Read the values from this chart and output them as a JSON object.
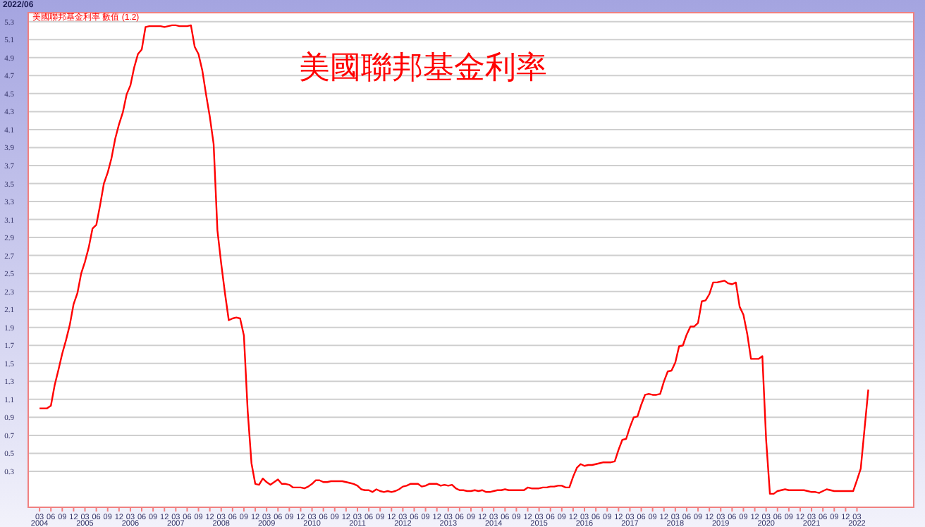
{
  "chart_data": {
    "type": "line",
    "title": "美國聯邦基金利率",
    "annotations": [
      "2022/06"
    ],
    "x": [
      "2004-03",
      "2004-04",
      "2004-05",
      "2004-06",
      "2004-07",
      "2004-08",
      "2004-09",
      "2004-10",
      "2004-11",
      "2004-12",
      "2005-01",
      "2005-02",
      "2005-03",
      "2005-04",
      "2005-05",
      "2005-06",
      "2005-07",
      "2005-08",
      "2005-09",
      "2005-10",
      "2005-11",
      "2005-12",
      "2006-01",
      "2006-02",
      "2006-03",
      "2006-04",
      "2006-05",
      "2006-06",
      "2006-07",
      "2006-08",
      "2006-09",
      "2006-10",
      "2006-11",
      "2006-12",
      "2007-01",
      "2007-02",
      "2007-03",
      "2007-04",
      "2007-05",
      "2007-06",
      "2007-07",
      "2007-08",
      "2007-09",
      "2007-10",
      "2007-11",
      "2007-12",
      "2008-01",
      "2008-02",
      "2008-03",
      "2008-04",
      "2008-05",
      "2008-06",
      "2008-07",
      "2008-08",
      "2008-09",
      "2008-10",
      "2008-11",
      "2008-12",
      "2009-01",
      "2009-02",
      "2009-03",
      "2009-04",
      "2009-05",
      "2009-06",
      "2009-07",
      "2009-08",
      "2009-09",
      "2009-10",
      "2009-11",
      "2009-12",
      "2010-01",
      "2010-02",
      "2010-03",
      "2010-04",
      "2010-05",
      "2010-06",
      "2010-07",
      "2010-08",
      "2010-09",
      "2010-10",
      "2010-11",
      "2010-12",
      "2011-01",
      "2011-02",
      "2011-03",
      "2011-04",
      "2011-05",
      "2011-06",
      "2011-07",
      "2011-08",
      "2011-09",
      "2011-10",
      "2011-11",
      "2011-12",
      "2012-01",
      "2012-02",
      "2012-03",
      "2012-04",
      "2012-05",
      "2012-06",
      "2012-07",
      "2012-08",
      "2012-09",
      "2012-10",
      "2012-11",
      "2012-12",
      "2013-01",
      "2013-02",
      "2013-03",
      "2013-04",
      "2013-05",
      "2013-06",
      "2013-07",
      "2013-08",
      "2013-09",
      "2013-10",
      "2013-11",
      "2013-12",
      "2014-01",
      "2014-02",
      "2014-03",
      "2014-04",
      "2014-05",
      "2014-06",
      "2014-07",
      "2014-08",
      "2014-09",
      "2014-10",
      "2014-11",
      "2014-12",
      "2015-01",
      "2015-02",
      "2015-03",
      "2015-04",
      "2015-05",
      "2015-06",
      "2015-07",
      "2015-08",
      "2015-09",
      "2015-10",
      "2015-11",
      "2015-12",
      "2016-01",
      "2016-02",
      "2016-03",
      "2016-04",
      "2016-05",
      "2016-06",
      "2016-07",
      "2016-08",
      "2016-09",
      "2016-10",
      "2016-11",
      "2016-12",
      "2017-01",
      "2017-02",
      "2017-03",
      "2017-04",
      "2017-05",
      "2017-06",
      "2017-07",
      "2017-08",
      "2017-09",
      "2017-10",
      "2017-11",
      "2017-12",
      "2018-01",
      "2018-02",
      "2018-03",
      "2018-04",
      "2018-05",
      "2018-06",
      "2018-07",
      "2018-08",
      "2018-09",
      "2018-10",
      "2018-11",
      "2018-12",
      "2019-01",
      "2019-02",
      "2019-03",
      "2019-04",
      "2019-05",
      "2019-06",
      "2019-07",
      "2019-08",
      "2019-09",
      "2019-10",
      "2019-11",
      "2019-12",
      "2020-01",
      "2020-02",
      "2020-03",
      "2020-04",
      "2020-05",
      "2020-06",
      "2020-07",
      "2020-08",
      "2020-09",
      "2020-10",
      "2020-11",
      "2020-12",
      "2021-01",
      "2021-02",
      "2021-03",
      "2021-04",
      "2021-05",
      "2021-06",
      "2021-07",
      "2021-08",
      "2021-09",
      "2021-10",
      "2021-11",
      "2021-12",
      "2022-01",
      "2022-02",
      "2022-03",
      "2022-04",
      "2022-05",
      "2022-06"
    ],
    "series": [
      {
        "name": "美國聯邦基金利率 數值 (1.2)",
        "color": "#ff0000",
        "values": [
          1.0,
          1.0,
          1.0,
          1.03,
          1.26,
          1.43,
          1.61,
          1.76,
          1.93,
          2.16,
          2.28,
          2.5,
          2.63,
          2.79,
          3.0,
          3.04,
          3.26,
          3.5,
          3.62,
          3.78,
          4.0,
          4.16,
          4.29,
          4.49,
          4.59,
          4.79,
          4.94,
          4.99,
          5.24,
          5.25,
          5.25,
          5.25,
          5.25,
          5.24,
          5.25,
          5.26,
          5.26,
          5.25,
          5.25,
          5.25,
          5.26,
          5.02,
          4.94,
          4.76,
          4.49,
          4.24,
          3.94,
          2.98,
          2.61,
          2.28,
          1.98,
          2.0,
          2.01,
          2.0,
          1.81,
          0.97,
          0.39,
          0.16,
          0.15,
          0.22,
          0.18,
          0.15,
          0.18,
          0.21,
          0.16,
          0.16,
          0.15,
          0.12,
          0.12,
          0.12,
          0.11,
          0.13,
          0.16,
          0.2,
          0.2,
          0.18,
          0.18,
          0.19,
          0.19,
          0.19,
          0.19,
          0.18,
          0.17,
          0.16,
          0.14,
          0.1,
          0.09,
          0.09,
          0.07,
          0.1,
          0.08,
          0.07,
          0.08,
          0.07,
          0.08,
          0.1,
          0.13,
          0.14,
          0.16,
          0.16,
          0.16,
          0.13,
          0.14,
          0.16,
          0.16,
          0.16,
          0.14,
          0.15,
          0.14,
          0.15,
          0.11,
          0.09,
          0.09,
          0.08,
          0.08,
          0.09,
          0.08,
          0.09,
          0.07,
          0.07,
          0.08,
          0.09,
          0.09,
          0.1,
          0.09,
          0.09,
          0.09,
          0.09,
          0.09,
          0.12,
          0.11,
          0.11,
          0.11,
          0.12,
          0.12,
          0.13,
          0.13,
          0.14,
          0.14,
          0.12,
          0.12,
          0.24,
          0.34,
          0.38,
          0.36,
          0.37,
          0.37,
          0.38,
          0.39,
          0.4,
          0.4,
          0.4,
          0.41,
          0.54,
          0.65,
          0.66,
          0.79,
          0.9,
          0.91,
          1.04,
          1.15,
          1.16,
          1.15,
          1.15,
          1.16,
          1.3,
          1.41,
          1.42,
          1.51,
          1.69,
          1.7,
          1.82,
          1.91,
          1.91,
          1.95,
          2.19,
          2.2,
          2.27,
          2.4,
          2.4,
          2.41,
          2.42,
          2.39,
          2.38,
          2.4,
          2.13,
          2.04,
          1.83,
          1.55,
          1.55,
          1.55,
          1.58,
          0.65,
          0.05,
          0.05,
          0.08,
          0.09,
          0.1,
          0.09,
          0.09,
          0.09,
          0.09,
          0.09,
          0.08,
          0.07,
          0.07,
          0.06,
          0.08,
          0.1,
          0.09,
          0.08,
          0.08,
          0.08,
          0.08,
          0.08,
          0.08,
          0.2,
          0.33,
          0.77,
          1.21
        ]
      }
    ],
    "xlim": [
      "2003-12",
      "2023-06"
    ],
    "xticks": [
      {
        "value": "2004-03",
        "label": "03"
      },
      {
        "value": "2004-06",
        "label": "06"
      },
      {
        "value": "2004-09",
        "label": "09"
      },
      {
        "value": "2004-12",
        "label": "12"
      },
      {
        "value": "2005-03",
        "label": "03"
      },
      {
        "value": "2005-06",
        "label": "06"
      },
      {
        "value": "2005-09",
        "label": "09"
      },
      {
        "value": "2005-12",
        "label": "12"
      },
      {
        "value": "2006-03",
        "label": "03"
      },
      {
        "value": "2006-06",
        "label": "06"
      },
      {
        "value": "2006-09",
        "label": "09"
      },
      {
        "value": "2006-12",
        "label": "12"
      },
      {
        "value": "2007-03",
        "label": "03"
      },
      {
        "value": "2007-06",
        "label": "06"
      },
      {
        "value": "2007-09",
        "label": "09"
      },
      {
        "value": "2007-12",
        "label": "12"
      },
      {
        "value": "2008-03",
        "label": "03"
      },
      {
        "value": "2008-06",
        "label": "06"
      },
      {
        "value": "2008-09",
        "label": "09"
      },
      {
        "value": "2008-12",
        "label": "12"
      },
      {
        "value": "2009-03",
        "label": "03"
      },
      {
        "value": "2009-06",
        "label": "06"
      },
      {
        "value": "2009-09",
        "label": "09"
      },
      {
        "value": "2009-12",
        "label": "12"
      },
      {
        "value": "2010-03",
        "label": "03"
      },
      {
        "value": "2010-06",
        "label": "06"
      },
      {
        "value": "2010-09",
        "label": "09"
      },
      {
        "value": "2010-12",
        "label": "12"
      },
      {
        "value": "2011-03",
        "label": "03"
      },
      {
        "value": "2011-06",
        "label": "06"
      },
      {
        "value": "2011-09",
        "label": "09"
      },
      {
        "value": "2011-12",
        "label": "12"
      },
      {
        "value": "2012-03",
        "label": "03"
      },
      {
        "value": "2012-06",
        "label": "06"
      },
      {
        "value": "2012-09",
        "label": "09"
      },
      {
        "value": "2012-12",
        "label": "12"
      },
      {
        "value": "2013-03",
        "label": "03"
      },
      {
        "value": "2013-06",
        "label": "06"
      },
      {
        "value": "2013-09",
        "label": "09"
      },
      {
        "value": "2013-12",
        "label": "12"
      },
      {
        "value": "2014-03",
        "label": "03"
      },
      {
        "value": "2014-06",
        "label": "06"
      },
      {
        "value": "2014-09",
        "label": "09"
      },
      {
        "value": "2014-12",
        "label": "12"
      },
      {
        "value": "2015-03",
        "label": "03"
      },
      {
        "value": "2015-06",
        "label": "06"
      },
      {
        "value": "2015-09",
        "label": "09"
      },
      {
        "value": "2015-12",
        "label": "12"
      },
      {
        "value": "2016-03",
        "label": "03"
      },
      {
        "value": "2016-06",
        "label": "06"
      },
      {
        "value": "2016-09",
        "label": "09"
      },
      {
        "value": "2016-12",
        "label": "12"
      },
      {
        "value": "2017-03",
        "label": "03"
      },
      {
        "value": "2017-06",
        "label": "06"
      },
      {
        "value": "2017-09",
        "label": "09"
      },
      {
        "value": "2017-12",
        "label": "12"
      },
      {
        "value": "2018-03",
        "label": "03"
      },
      {
        "value": "2018-06",
        "label": "06"
      },
      {
        "value": "2018-09",
        "label": "09"
      },
      {
        "value": "2018-12",
        "label": "12"
      },
      {
        "value": "2019-03",
        "label": "03"
      },
      {
        "value": "2019-06",
        "label": "06"
      },
      {
        "value": "2019-09",
        "label": "09"
      },
      {
        "value": "2019-12",
        "label": "12"
      },
      {
        "value": "2020-03",
        "label": "03"
      },
      {
        "value": "2020-06",
        "label": "06"
      },
      {
        "value": "2020-09",
        "label": "09"
      },
      {
        "value": "2020-12",
        "label": "12"
      },
      {
        "value": "2021-03",
        "label": "03"
      },
      {
        "value": "2021-06",
        "label": "06"
      },
      {
        "value": "2021-09",
        "label": "09"
      },
      {
        "value": "2021-12",
        "label": "12"
      },
      {
        "value": "2022-03",
        "label": "03"
      }
    ],
    "x2lim": [
      "2003-12",
      "2023-06"
    ],
    "x2ticks": [
      {
        "value": "2004-03",
        "label": "2004"
      },
      {
        "value": "2005-03",
        "label": "2005"
      },
      {
        "value": "2006-03",
        "label": "2006"
      },
      {
        "value": "2007-03",
        "label": "2007"
      },
      {
        "value": "2008-03",
        "label": "2008"
      },
      {
        "value": "2009-03",
        "label": "2009"
      },
      {
        "value": "2010-03",
        "label": "2010"
      },
      {
        "value": "2011-03",
        "label": "2011"
      },
      {
        "value": "2012-03",
        "label": "2012"
      },
      {
        "value": "2013-03",
        "label": "2013"
      },
      {
        "value": "2014-03",
        "label": "2014"
      },
      {
        "value": "2015-03",
        "label": "2015"
      },
      {
        "value": "2016-03",
        "label": "2016"
      },
      {
        "value": "2017-03",
        "label": "2017"
      },
      {
        "value": "2018-03",
        "label": "2018"
      },
      {
        "value": "2019-03",
        "label": "2019"
      },
      {
        "value": "2020-03",
        "label": "2020"
      },
      {
        "value": "2021-03",
        "label": "2021"
      },
      {
        "value": "2022-03",
        "label": "2022"
      }
    ],
    "ylim": [
      -0.1,
      5.4
    ],
    "yticks": [
      0.3,
      0.5,
      0.7,
      0.9,
      1.1,
      1.3,
      1.5,
      1.7,
      1.9,
      2.1,
      2.3,
      2.5,
      2.7,
      2.9,
      3.1,
      3.3,
      3.5,
      3.7,
      3.9,
      4.1,
      4.3,
      4.5,
      4.7,
      4.9,
      5.1,
      5.3
    ],
    "grid": "y",
    "legend": "top left",
    "marker": "none",
    "line_style": "solid"
  }
}
